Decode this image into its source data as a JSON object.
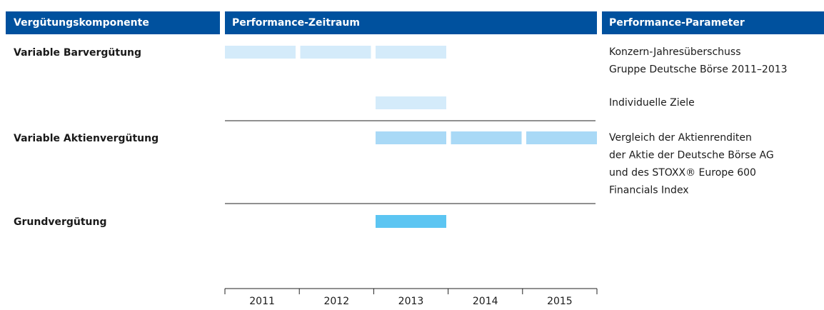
{
  "header": [
    "Vergütungskomponente",
    "Performance-Zeitraum",
    "Performance-Parameter"
  ],
  "years": [
    "2011",
    "2012",
    "2013",
    "2014",
    "2015"
  ],
  "rows": [
    {
      "label": "Variable Barvergütung",
      "color": "#d4ebfa",
      "groups": [
        {
          "years": [
            "2011",
            "2012",
            "2013"
          ],
          "parameter": [
            "Konzern-Jahresüberschuss",
            "Gruppe Deutsche Börse 2011–2013"
          ]
        },
        {
          "years": [
            "2013"
          ],
          "parameter": [
            "Individuelle Ziele"
          ]
        }
      ]
    },
    {
      "label": "Variable Aktienvergütung",
      "color": "#a9d9f6",
      "groups": [
        {
          "years": [
            "2013",
            "2014",
            "2015"
          ],
          "parameter": [
            "Vergleich der Aktienrenditen",
            "der Aktie der Deutsche Börse AG",
            "und des STOXX® Europe 600",
            "Financials Index"
          ]
        }
      ]
    },
    {
      "label": "Grundvergütung",
      "color": "#5cc5f2",
      "groups": [
        {
          "years": [
            "2013"
          ],
          "parameter": []
        }
      ]
    }
  ]
}
